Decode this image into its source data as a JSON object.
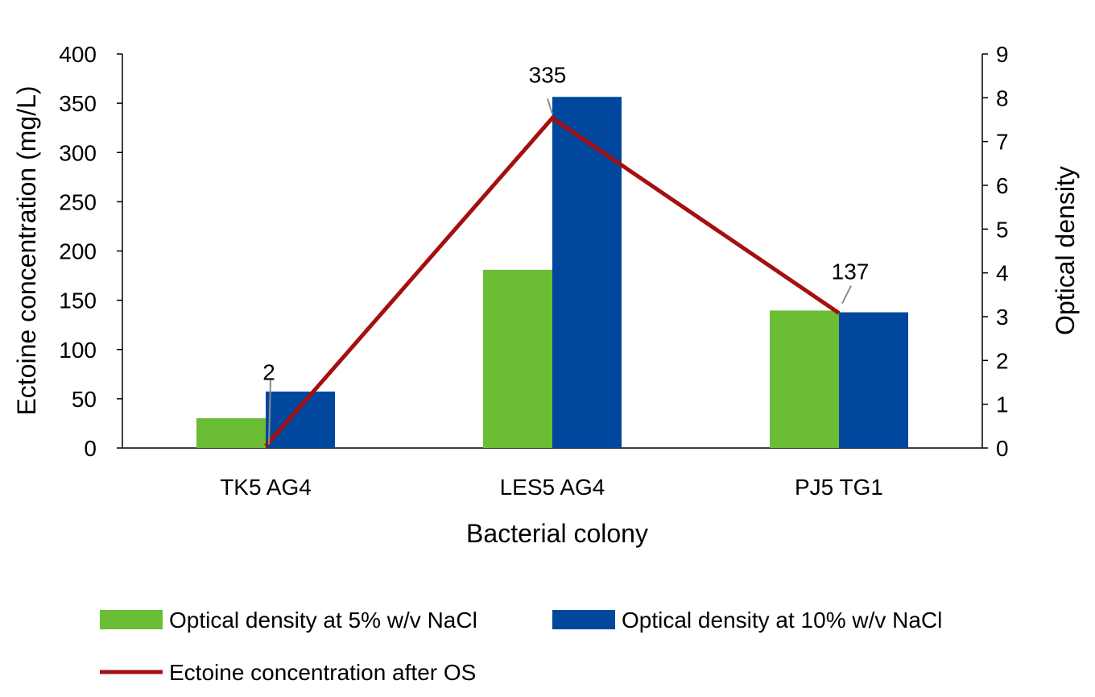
{
  "chart_data": {
    "type": "bar",
    "categories": [
      "TK5 AG4",
      "LES5 AG4",
      "PJ5 TG1"
    ],
    "series": [
      {
        "name": "Optical density at 5% w/v NaCl",
        "axis": "right",
        "values": [
          0.68,
          4.07,
          3.14
        ],
        "color": "#6ABD35"
      },
      {
        "name": "Optical density at 10% w/v NaCl",
        "axis": "right",
        "values": [
          1.29,
          8.02,
          3.1
        ],
        "color": "#00479D"
      },
      {
        "name": "Ectoine concentration after OS",
        "axis": "left",
        "type": "line",
        "values": [
          2,
          335,
          137
        ],
        "color": "#A50F0F"
      }
    ],
    "data_labels": [
      "2",
      "335",
      "137"
    ],
    "xlabel": "Bacterial colony",
    "ylabel": "Ectoine concentration (mg/L)",
    "y2label": "Optical density",
    "ylim": [
      0,
      400
    ],
    "y2lim": [
      0,
      9
    ],
    "yticks": [
      "0",
      "50",
      "100",
      "150",
      "200",
      "250",
      "300",
      "350",
      "400"
    ],
    "y2ticks": [
      "0",
      "1",
      "2",
      "3",
      "4",
      "5",
      "6",
      "7",
      "8",
      "9"
    ],
    "grid": false,
    "legend_position": "bottom"
  }
}
